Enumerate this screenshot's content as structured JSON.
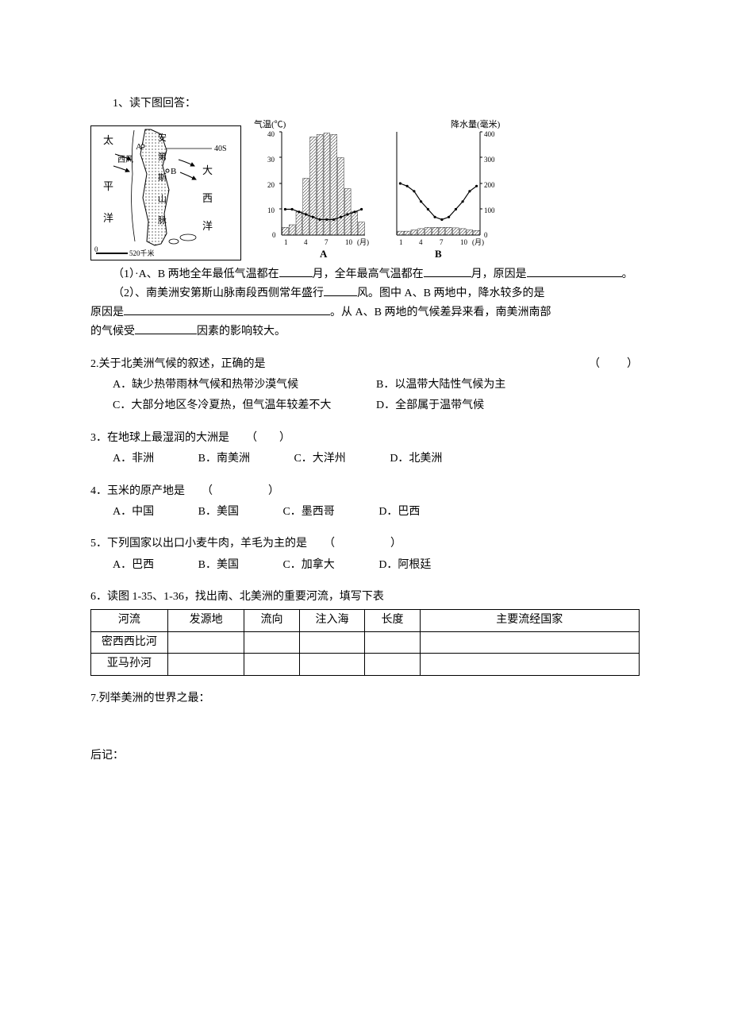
{
  "q1": {
    "title": "1、读下图回答：",
    "map": {
      "labels": {
        "pacific": "太",
        "pingyang": "平",
        "yang": "洋",
        "xifeng": "西风",
        "atlantic_da": "大",
        "atlantic_xi": "西",
        "atlantic_yang": "洋",
        "andes_an": "安",
        "andes_di": "第",
        "andes_si": "斯",
        "andes_shan": "山",
        "andes_mai": "脉",
        "A": "A",
        "B": "B",
        "lat40": "40S",
        "scale0": "0",
        "scale520": "520千米"
      },
      "colors": {
        "border": "#000000",
        "land": "#ffffff",
        "hatch": "#666666"
      }
    },
    "charts": {
      "axis_labels": {
        "temp": "气温(℃)",
        "precip": "降水量(毫米)",
        "month": "(月)"
      },
      "A": {
        "label": "A",
        "temp_ticks": [
          0,
          10,
          20,
          30,
          40
        ],
        "month_ticks": [
          1,
          4,
          7,
          10
        ],
        "precip_max": 400,
        "temp_values": [
          10,
          10,
          9,
          8,
          7,
          6,
          6,
          6,
          7,
          8,
          9,
          10
        ],
        "precip_values": [
          30,
          40,
          90,
          220,
          380,
          390,
          395,
          390,
          300,
          180,
          90,
          50
        ],
        "line_color": "#000000",
        "bar_fill": "hatch",
        "bar_hatch_color": "#666666"
      },
      "B": {
        "label": "B",
        "precip_ticks": [
          0,
          100,
          200,
          300,
          400
        ],
        "month_ticks": [
          1,
          4,
          7,
          10
        ],
        "temp_values": [
          20,
          19,
          17,
          13,
          10,
          7,
          6,
          7,
          10,
          13,
          17,
          19
        ],
        "precip_values": [
          15,
          15,
          20,
          25,
          30,
          30,
          30,
          30,
          28,
          25,
          20,
          18
        ],
        "line_color": "#000000",
        "bar_fill": "hatch",
        "bar_hatch_color": "#666666"
      }
    },
    "sub1_pre": "（1）·A、B 两地全年最低气温都在",
    "sub1_mid": "月，全年最高气温都在",
    "sub1_post1": "月，原因是",
    "sub1_post2": "。",
    "sub2_pre": "（2）、南美洲安第斯山脉南段西侧常年盛行",
    "sub2_mid": "风。图中 A、B 两地中，降水较多的是",
    "sub2_reason_pre": "原因是",
    "sub2_reason_post": "。从 A、B 两地的气候差异来看，南美洲南部",
    "sub2_factor_pre": "的气候受",
    "sub2_factor_post": "因素的影响较大。"
  },
  "q2": {
    "title": "2.关于北美洲气候的叙述，正确的是",
    "paren": "（　　）",
    "optA": "A．缺少热带雨林气候和热带沙漠气候",
    "optB": "B．以温带大陆性气候为主",
    "optC": "C．大部分地区冬冷夏热，但气温年较差不大",
    "optD": "D．全部属于温带气候"
  },
  "q3": {
    "title": "3．在地球上最湿润的大洲是　　（　　）",
    "optA": "A．非洲",
    "optB": "B．南美洲",
    "optC": "C．大洋州",
    "optD": "D．北美洲"
  },
  "q4": {
    "title_pre": "4．玉米的原产地是　　（　　　　　）",
    "optA": "A．中国",
    "optB": "B．美国",
    "optC": "C．墨西哥",
    "optD": "D．巴西"
  },
  "q5": {
    "title": "5．下列国家以出口小麦牛肉，羊毛为主的是　　（　　　　　）",
    "optA": "A．巴西",
    "optB": "B．美国",
    "optC": "C．加拿大",
    "optD": "D．阿根廷"
  },
  "q6": {
    "title": "6．读图 1-35、1-36，找出南、北美洲的重要河流，填写下表",
    "headers": [
      "河流",
      "发源地",
      "流向",
      "注入海",
      "长度",
      "主要流经国家"
    ],
    "rows": [
      "密西西比河",
      "亚马孙河"
    ],
    "col_widths": [
      "14%",
      "14%",
      "10%",
      "12%",
      "10%",
      "40%"
    ]
  },
  "q7": {
    "title": "7.列举美洲的世界之最："
  },
  "postscript": "后记："
}
